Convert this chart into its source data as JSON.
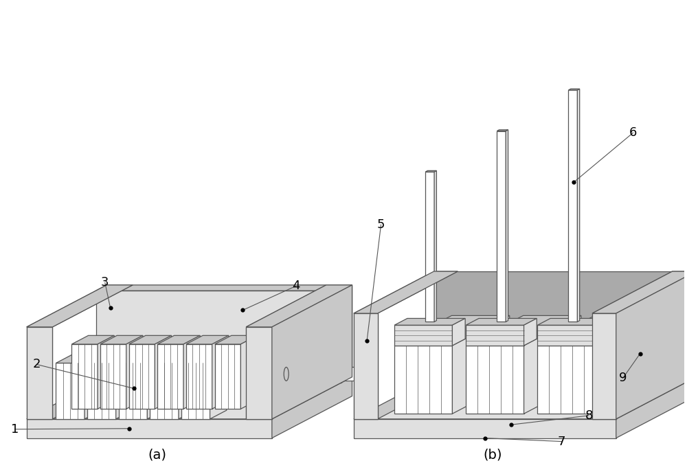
{
  "bg_color": "#ffffff",
  "line_color": "#555555",
  "fill_white": "#ffffff",
  "fill_light": "#e0e0e0",
  "fill_mid": "#c8c8c8",
  "fill_dark": "#aaaaaa",
  "fill_vdark": "#888888",
  "label_a": "(a)",
  "label_b": "(b)",
  "figsize": [
    10.0,
    6.87
  ],
  "dpi": 100,
  "label_fontsize": 14,
  "num_fontsize": 13
}
